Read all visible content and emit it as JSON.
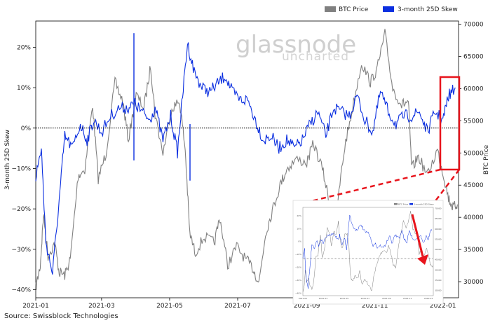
{
  "chart_data": {
    "type": "line",
    "title": "",
    "xlabel": "",
    "ylabel": "3-month 25D Skew",
    "y2label": "BTC Price",
    "x_ticks": [
      "2021-01",
      "2021-03",
      "2021-05",
      "2021-07",
      "2021-09",
      "2021-11",
      "2022-01"
    ],
    "y_ticks": [
      "20%",
      "10%",
      "0%",
      "−10%",
      "−20%",
      "−30%",
      "−40%"
    ],
    "y2_ticks": [
      "70000",
      "65000",
      "60000",
      "55000",
      "50000",
      "45000",
      "40000",
      "35000",
      "30000"
    ],
    "ylim": [
      -0.42,
      0.265
    ],
    "y2lim": [
      27500,
      70500
    ],
    "xlim": [
      "2021-01-01",
      "2022-01-15"
    ],
    "zero_line": true,
    "legend_position": "top-right",
    "colors": {
      "btc_price": "#808080",
      "skew": "#0b2fe0",
      "highlight": "#e8141c"
    },
    "series": [
      {
        "name": "BTC Price",
        "axis": "right",
        "x": [
          "2021-01-01",
          "2021-01-05",
          "2021-01-08",
          "2021-01-12",
          "2021-01-18",
          "2021-01-22",
          "2021-01-27",
          "2021-02-01",
          "2021-02-08",
          "2021-02-14",
          "2021-02-21",
          "2021-02-26",
          "2021-03-05",
          "2021-03-13",
          "2021-03-20",
          "2021-03-25",
          "2021-04-01",
          "2021-04-08",
          "2021-04-14",
          "2021-04-18",
          "2021-04-25",
          "2021-05-03",
          "2021-05-10",
          "2021-05-15",
          "2021-05-19",
          "2021-05-24",
          "2021-06-01",
          "2021-06-10",
          "2021-06-15",
          "2021-06-22",
          "2021-06-30",
          "2021-07-08",
          "2021-07-15",
          "2021-07-20",
          "2021-07-26",
          "2021-08-01",
          "2021-08-08",
          "2021-08-14",
          "2021-08-22",
          "2021-09-01",
          "2021-09-07",
          "2021-09-15",
          "2021-09-21",
          "2021-09-28",
          "2021-10-05",
          "2021-10-12",
          "2021-10-20",
          "2021-10-28",
          "2021-11-03",
          "2021-11-10",
          "2021-11-17",
          "2021-11-25",
          "2021-12-01",
          "2021-12-04",
          "2021-12-10",
          "2021-12-18",
          "2021-12-27",
          "2022-01-01",
          "2022-01-06",
          "2022-01-10",
          "2022-01-14"
        ],
        "values": [
          29000,
          32500,
          40500,
          34000,
          36000,
          31500,
          31000,
          33500,
          46500,
          47500,
          57500,
          46000,
          50000,
          61000,
          58000,
          52000,
          59000,
          57000,
          63500,
          56000,
          50000,
          57000,
          58000,
          50500,
          37500,
          34500,
          37000,
          36000,
          40000,
          32500,
          35500,
          33500,
          32000,
          29800,
          37500,
          41000,
          45000,
          47500,
          49000,
          48500,
          51500,
          47500,
          42500,
          41500,
          51000,
          57000,
          64000,
          61000,
          63000,
          68500,
          60000,
          57500,
          58000,
          47500,
          49500,
          46500,
          50500,
          47000,
          43000,
          41500,
          42000
        ]
      },
      {
        "name": "3-month 25D Skew",
        "axis": "left",
        "x": [
          "2021-01-01",
          "2021-01-06",
          "2021-01-10",
          "2021-01-16",
          "2021-01-22",
          "2021-01-27",
          "2021-02-03",
          "2021-02-10",
          "2021-02-16",
          "2021-02-22",
          "2021-03-01",
          "2021-03-09",
          "2021-03-17",
          "2021-03-24",
          "2021-03-31",
          "2021-04-06",
          "2021-04-13",
          "2021-04-18",
          "2021-04-25",
          "2021-05-02",
          "2021-05-08",
          "2021-05-12",
          "2021-05-17",
          "2021-05-23",
          "2021-05-30",
          "2021-06-06",
          "2021-06-13",
          "2021-06-20",
          "2021-06-26",
          "2021-07-03",
          "2021-07-10",
          "2021-07-17",
          "2021-07-24",
          "2021-07-31",
          "2021-08-07",
          "2021-08-14",
          "2021-08-21",
          "2021-08-28",
          "2021-09-04",
          "2021-09-11",
          "2021-09-18",
          "2021-09-25",
          "2021-10-02",
          "2021-10-09",
          "2021-10-16",
          "2021-10-23",
          "2021-10-30",
          "2021-11-06",
          "2021-11-13",
          "2021-11-20",
          "2021-11-27",
          "2021-12-04",
          "2021-12-11",
          "2021-12-18",
          "2021-12-25",
          "2022-01-01",
          "2022-01-06",
          "2022-01-12"
        ],
        "values": [
          -0.12,
          -0.05,
          -0.28,
          -0.36,
          -0.18,
          -0.02,
          -0.05,
          0.01,
          -0.03,
          0.02,
          -0.01,
          0.03,
          0.05,
          0.05,
          0.06,
          0.04,
          0.02,
          0.05,
          -0.03,
          0.03,
          -0.06,
          0.06,
          0.21,
          0.14,
          0.1,
          0.09,
          0.11,
          0.13,
          0.09,
          0.07,
          0.07,
          0.02,
          -0.03,
          -0.02,
          -0.05,
          -0.03,
          -0.05,
          -0.03,
          0.01,
          0.04,
          -0.02,
          0.05,
          0.04,
          0.03,
          0.08,
          0.02,
          -0.01,
          0.09,
          0.04,
          0.01,
          0.03,
          0.03,
          0.04,
          -0.01,
          0.04,
          0.02,
          0.08,
          0.1
        ]
      }
    ],
    "watermark": {
      "brand": "glassnode",
      "tagline": "uncharted"
    }
  },
  "footer": {
    "source": "Source: Swissblock Technologies"
  }
}
